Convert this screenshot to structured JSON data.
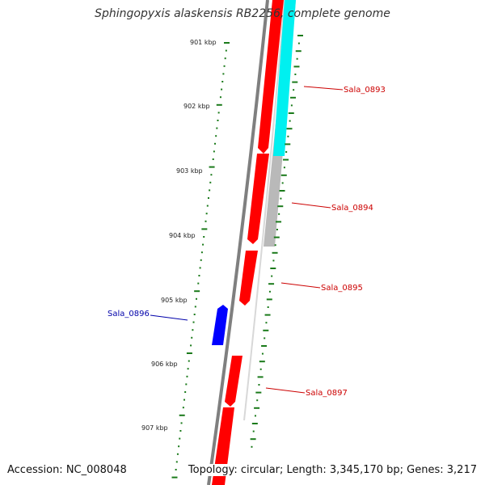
{
  "title": "Sphingopyxis alaskensis RB2256, complete genome",
  "accession": "Accession: NC_008048",
  "topology": "Topology: circular; Length: 3,345,170 bp; Genes: 3,217",
  "colors": {
    "forward_gene": "#ff0000",
    "reverse_gene": "#0000ff",
    "cyan_feature": "#00ffff",
    "gray_feature": "#bbbbbb",
    "backbone": "#808080",
    "ticks": "#1a7a1a",
    "forward_label": "#cc0000",
    "reverse_label": "#0000aa"
  },
  "kbp_labels": [
    {
      "id": "kbp-901",
      "text": "901 kbp"
    },
    {
      "id": "kbp-902",
      "text": "902 kbp"
    },
    {
      "id": "kbp-903",
      "text": "903 kbp"
    },
    {
      "id": "kbp-904",
      "text": "904 kbp"
    },
    {
      "id": "kbp-905",
      "text": "905 kbp"
    },
    {
      "id": "kbp-906",
      "text": "906 kbp"
    },
    {
      "id": "kbp-907",
      "text": "907 kbp"
    }
  ],
  "genes": [
    {
      "id": "gene-sala-0893",
      "name": "Sala_0893",
      "strand": "forward"
    },
    {
      "id": "gene-sala-0894",
      "name": "Sala_0894",
      "strand": "forward"
    },
    {
      "id": "gene-sala-0895",
      "name": "Sala_0895",
      "strand": "forward"
    },
    {
      "id": "gene-sala-0896",
      "name": "Sala_0896",
      "strand": "reverse"
    },
    {
      "id": "gene-sala-0897",
      "name": "Sala_0897",
      "strand": "forward"
    }
  ]
}
